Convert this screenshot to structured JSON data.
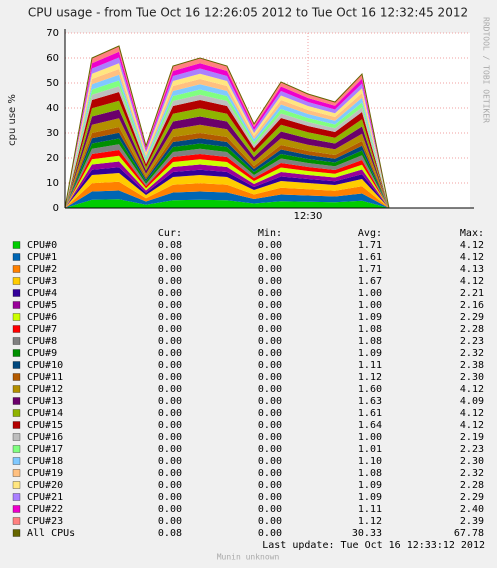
{
  "chart_data": {
    "type": "area",
    "title": "CPU usage - from Tue Oct 16 12:26:05 2012 to Tue Oct 16 12:32:45 2012",
    "y_label": "cpu use %",
    "watermark": "RRDTOOL / TOBI OETIKER",
    "categories": [
      null,
      null,
      null,
      null,
      null,
      null,
      null,
      null,
      null,
      "12:30",
      null,
      null,
      null,
      null,
      null,
      null
    ],
    "ylim": [
      0,
      70
    ],
    "yticks": [
      0,
      10,
      20,
      30,
      40,
      50,
      60,
      70
    ],
    "grid": true,
    "legend_headers": [
      "Cur:",
      "Min:",
      "Avg:",
      "Max:"
    ],
    "series": [
      {
        "name": "CPU#0",
        "color": "#00CC00",
        "values": [
          0,
          3.3,
          3.5,
          1.3,
          3.1,
          3.3,
          3.1,
          1.8,
          2.7,
          2.5,
          2.3,
          2.9,
          0,
          0,
          0,
          0
        ],
        "stats": [
          "0.08",
          "0.00",
          "1.71",
          "4.12"
        ]
      },
      {
        "name": "CPU#1",
        "color": "#0066B3",
        "values": [
          0,
          3.3,
          3.5,
          1.3,
          3.1,
          3.3,
          3.1,
          1.8,
          2.7,
          2.5,
          2.3,
          2.9,
          0,
          0,
          0,
          0
        ],
        "stats": [
          "0.00",
          "0.00",
          "1.61",
          "4.12"
        ]
      },
      {
        "name": "CPU#2",
        "color": "#FF8000",
        "values": [
          0,
          3.3,
          3.5,
          1.3,
          3.1,
          3.3,
          3.1,
          1.8,
          2.7,
          2.5,
          2.3,
          2.9,
          0,
          0,
          0,
          0
        ],
        "stats": [
          "0.00",
          "0.00",
          "1.71",
          "4.13"
        ]
      },
      {
        "name": "CPU#3",
        "color": "#FFCC00",
        "values": [
          0,
          3.3,
          3.5,
          1.3,
          3.1,
          3.3,
          3.1,
          1.8,
          2.7,
          2.5,
          2.3,
          2.9,
          0,
          0,
          0,
          0
        ],
        "stats": [
          "0.00",
          "0.00",
          "1.67",
          "4.12"
        ]
      },
      {
        "name": "CPU#4",
        "color": "#330099",
        "values": [
          0,
          2.1,
          2.3,
          0.9,
          2.0,
          2.1,
          2.0,
          1.2,
          1.8,
          1.6,
          1.5,
          1.9,
          0,
          0,
          0,
          0
        ],
        "stats": [
          "0.00",
          "0.00",
          "1.00",
          "2.21"
        ]
      },
      {
        "name": "CPU#5",
        "color": "#990099",
        "values": [
          0,
          2.1,
          2.3,
          0.9,
          2.0,
          2.1,
          2.0,
          1.2,
          1.8,
          1.6,
          1.5,
          1.9,
          0,
          0,
          0,
          0
        ],
        "stats": [
          "0.00",
          "0.00",
          "1.00",
          "2.16"
        ]
      },
      {
        "name": "CPU#6",
        "color": "#CCFF00",
        "values": [
          0,
          2.1,
          2.3,
          0.9,
          2.0,
          2.1,
          2.0,
          1.2,
          1.8,
          1.6,
          1.5,
          1.9,
          0,
          0,
          0,
          0
        ],
        "stats": [
          "0.00",
          "0.00",
          "1.09",
          "2.29"
        ]
      },
      {
        "name": "CPU#7",
        "color": "#FF0000",
        "values": [
          0,
          2.1,
          2.3,
          0.9,
          2.0,
          2.1,
          2.0,
          1.2,
          1.8,
          1.6,
          1.5,
          1.9,
          0,
          0,
          0,
          0
        ],
        "stats": [
          "0.00",
          "0.00",
          "1.08",
          "2.28"
        ]
      },
      {
        "name": "CPU#8",
        "color": "#808080",
        "values": [
          0,
          2.1,
          2.3,
          0.9,
          2.0,
          2.1,
          2.0,
          1.2,
          1.8,
          1.6,
          1.5,
          1.9,
          0,
          0,
          0,
          0
        ],
        "stats": [
          "0.00",
          "0.00",
          "1.08",
          "2.23"
        ]
      },
      {
        "name": "CPU#9",
        "color": "#008F00",
        "values": [
          0,
          2.1,
          2.3,
          0.9,
          2.0,
          2.1,
          2.0,
          1.2,
          1.8,
          1.6,
          1.5,
          1.9,
          0,
          0,
          0,
          0
        ],
        "stats": [
          "0.00",
          "0.00",
          "1.09",
          "2.32"
        ]
      },
      {
        "name": "CPU#10",
        "color": "#00487D",
        "values": [
          0,
          2.1,
          2.3,
          0.9,
          2.0,
          2.1,
          2.0,
          1.2,
          1.8,
          1.6,
          1.5,
          1.9,
          0,
          0,
          0,
          0
        ],
        "stats": [
          "0.00",
          "0.00",
          "1.11",
          "2.38"
        ]
      },
      {
        "name": "CPU#11",
        "color": "#B35A00",
        "values": [
          0,
          2.1,
          2.3,
          0.9,
          2.0,
          2.1,
          2.0,
          1.2,
          1.8,
          1.6,
          1.5,
          1.9,
          0,
          0,
          0,
          0
        ],
        "stats": [
          "0.00",
          "0.00",
          "1.12",
          "2.30"
        ]
      },
      {
        "name": "CPU#12",
        "color": "#B38F00",
        "values": [
          0,
          3.3,
          3.5,
          1.3,
          3.1,
          3.3,
          3.1,
          1.8,
          2.7,
          2.5,
          2.3,
          2.9,
          0,
          0,
          0,
          0
        ],
        "stats": [
          "0.00",
          "0.00",
          "1.60",
          "4.12"
        ]
      },
      {
        "name": "CPU#13",
        "color": "#6B006B",
        "values": [
          0,
          3.3,
          3.5,
          1.3,
          3.1,
          3.3,
          3.1,
          1.8,
          2.7,
          2.5,
          2.3,
          2.9,
          0,
          0,
          0,
          0
        ],
        "stats": [
          "0.00",
          "0.00",
          "1.63",
          "4.09"
        ]
      },
      {
        "name": "CPU#14",
        "color": "#8FB300",
        "values": [
          0,
          3.3,
          3.5,
          1.3,
          3.1,
          3.3,
          3.1,
          1.8,
          2.7,
          2.5,
          2.3,
          2.9,
          0,
          0,
          0,
          0
        ],
        "stats": [
          "0.00",
          "0.00",
          "1.61",
          "4.12"
        ]
      },
      {
        "name": "CPU#15",
        "color": "#B30000",
        "values": [
          0,
          3.3,
          3.5,
          1.3,
          3.1,
          3.3,
          3.1,
          1.8,
          2.7,
          2.5,
          2.3,
          2.9,
          0,
          0,
          0,
          0
        ],
        "stats": [
          "0.00",
          "0.00",
          "1.64",
          "4.12"
        ]
      },
      {
        "name": "CPU#16",
        "color": "#BEBEBE",
        "values": [
          0,
          2.1,
          2.3,
          0.9,
          2.0,
          2.1,
          2.0,
          1.2,
          1.8,
          1.6,
          1.5,
          1.9,
          0,
          0,
          0,
          0
        ],
        "stats": [
          "0.00",
          "0.00",
          "1.00",
          "2.19"
        ]
      },
      {
        "name": "CPU#17",
        "color": "#80FF80",
        "values": [
          0,
          2.1,
          2.3,
          0.9,
          2.0,
          2.1,
          2.0,
          1.2,
          1.8,
          1.6,
          1.5,
          1.9,
          0,
          0,
          0,
          0
        ],
        "stats": [
          "0.00",
          "0.00",
          "1.01",
          "2.23"
        ]
      },
      {
        "name": "CPU#18",
        "color": "#80C9FF",
        "values": [
          0,
          2.1,
          2.3,
          0.9,
          2.0,
          2.1,
          2.0,
          1.2,
          1.8,
          1.6,
          1.5,
          1.9,
          0,
          0,
          0,
          0
        ],
        "stats": [
          "0.00",
          "0.00",
          "1.10",
          "2.30"
        ]
      },
      {
        "name": "CPU#19",
        "color": "#FFC080",
        "values": [
          0,
          2.1,
          2.3,
          0.9,
          2.0,
          2.1,
          2.0,
          1.2,
          1.8,
          1.6,
          1.5,
          1.9,
          0,
          0,
          0,
          0
        ],
        "stats": [
          "0.00",
          "0.00",
          "1.08",
          "2.32"
        ]
      },
      {
        "name": "CPU#20",
        "color": "#FFE680",
        "values": [
          0,
          2.1,
          2.3,
          0.9,
          2.0,
          2.1,
          2.0,
          1.2,
          1.8,
          1.6,
          1.5,
          1.9,
          0,
          0,
          0,
          0
        ],
        "stats": [
          "0.00",
          "0.00",
          "1.09",
          "2.28"
        ]
      },
      {
        "name": "CPU#21",
        "color": "#AA80FF",
        "values": [
          0,
          2.1,
          2.3,
          0.9,
          2.0,
          2.1,
          2.0,
          1.2,
          1.8,
          1.6,
          1.5,
          1.9,
          0,
          0,
          0,
          0
        ],
        "stats": [
          "0.00",
          "0.00",
          "1.09",
          "2.29"
        ]
      },
      {
        "name": "CPU#22",
        "color": "#EE00CC",
        "values": [
          0,
          2.1,
          2.3,
          0.9,
          2.0,
          2.1,
          2.0,
          1.2,
          1.8,
          1.6,
          1.5,
          1.9,
          0,
          0,
          0,
          0
        ],
        "stats": [
          "0.00",
          "0.00",
          "1.11",
          "2.40"
        ]
      },
      {
        "name": "CPU#23",
        "color": "#FF8080",
        "values": [
          0,
          2.1,
          2.3,
          0.9,
          2.0,
          2.1,
          2.0,
          1.2,
          1.8,
          1.6,
          1.5,
          1.9,
          0,
          0,
          0,
          0
        ],
        "stats": [
          "0.00",
          "0.00",
          "1.12",
          "2.39"
        ]
      },
      {
        "name": "All CPUs",
        "color": "#666600",
        "style": "line",
        "values": [
          0,
          60,
          64.8,
          24.8,
          56.8,
          60,
          56.8,
          33.6,
          50.4,
          45.6,
          42.4,
          53.6,
          0,
          0,
          0,
          0
        ],
        "stats": [
          "0.08",
          "0.00",
          "30.33",
          "67.78"
        ]
      }
    ],
    "last_update": "Last update: Tue Oct 16 12:33:12 2012",
    "footer": "Munin unknown"
  }
}
